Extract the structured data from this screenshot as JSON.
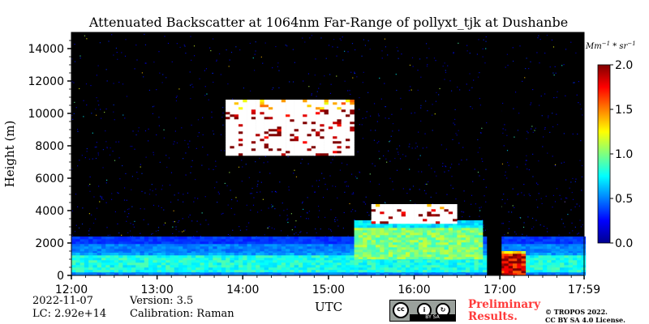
{
  "chart_data": {
    "type": "heatmap",
    "title": "Attenuated Backscatter at 1064nm Far-Range of pollyxt_tjk at Dushanbe",
    "xlabel": "UTC",
    "ylabel": "Height (m)",
    "x_ticks": [
      "12:00",
      "13:00",
      "14:00",
      "15:00",
      "16:00",
      "17:00",
      "17:59"
    ],
    "x_range_hours": [
      12.0,
      17.983
    ],
    "y_ticks": [
      0,
      2000,
      4000,
      6000,
      8000,
      10000,
      12000,
      14000
    ],
    "ylim": [
      0,
      15000
    ],
    "colorbar": {
      "label": "Mm^{-1}*sr^{-1}",
      "ticks": [
        "0.0",
        "0.5",
        "1.0",
        "1.5",
        "2.0"
      ],
      "range": [
        0.0,
        2.0
      ],
      "colormap": "jet"
    },
    "features": [
      {
        "name": "aerosol boundary layer",
        "t_start": 12.0,
        "t_end": 17.98,
        "base_m": 0,
        "top_m": 2300,
        "value": 0.5
      },
      {
        "name": "dense surface layer",
        "t_start": 12.0,
        "t_end": 17.98,
        "base_m": 200,
        "top_m": 1400,
        "value": 0.8
      },
      {
        "name": "elevated aerosol",
        "t_start": 15.3,
        "t_end": 16.8,
        "base_m": 1000,
        "top_m": 3300,
        "value": 1.0
      },
      {
        "name": "cirrus cloud",
        "t_start": 13.8,
        "t_end": 15.3,
        "base_m": 7400,
        "top_m": 10800,
        "value": 2.0
      },
      {
        "name": "mid-level cloud",
        "t_start": 15.5,
        "t_end": 16.5,
        "base_m": 3200,
        "top_m": 4300,
        "value": 2.0
      },
      {
        "name": "low cloud",
        "t_start": 17.0,
        "t_end": 17.3,
        "base_m": 0,
        "top_m": 1500,
        "value": 1.8
      }
    ],
    "data_gaps": [
      {
        "t_start": 16.85,
        "t_end": 17.02
      }
    ],
    "grid": false,
    "colors": {
      "background_signal": "#000000",
      "noise": "#06208f"
    }
  },
  "meta": {
    "date": "2022-11-07",
    "lc": "LC: 2.92e+14",
    "version": "Version: 3.5",
    "calibration": "Calibration: Raman",
    "preliminary_line1": "Preliminary",
    "preliminary_line2": "Results.",
    "copyright": "© TROPOS 2022.",
    "license": "CC BY SA 4.0 License.",
    "cc_logo_text": "BY   SA"
  }
}
